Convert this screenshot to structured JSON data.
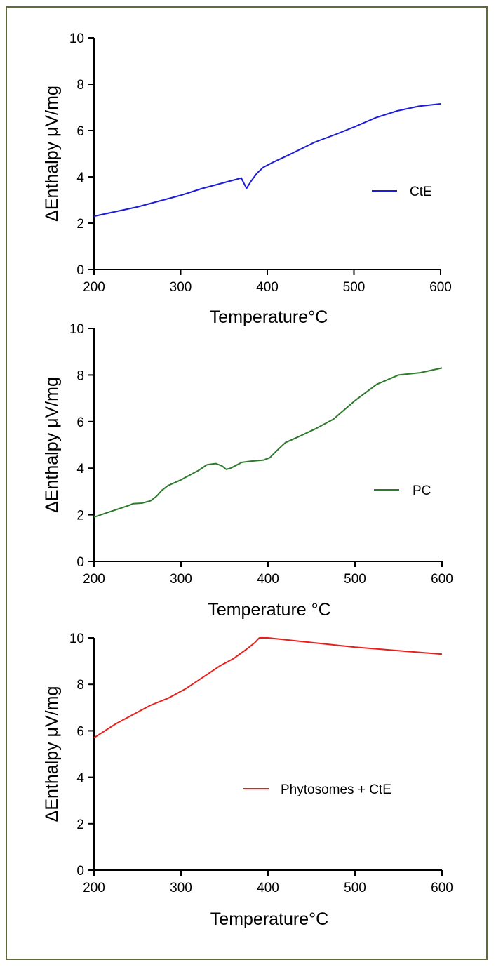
{
  "chart_data": [
    {
      "type": "line",
      "title": "",
      "xlabel": "Temperature°C",
      "ylabel": "ΔEnthalpy μV/mg",
      "xlim": [
        200,
        600
      ],
      "ylim": [
        0,
        10
      ],
      "xticks": [
        200,
        300,
        400,
        500,
        600
      ],
      "yticks": [
        0,
        2,
        4,
        6,
        8,
        10
      ],
      "grid": false,
      "legend": "right",
      "series": [
        {
          "name": "CtE",
          "color": "#1c1cdc",
          "x": [
            200,
            225,
            250,
            275,
            300,
            325,
            340,
            355,
            370,
            376,
            381,
            388,
            395,
            405,
            425,
            455,
            480,
            500,
            525,
            550,
            575,
            600
          ],
          "y": [
            2.3,
            2.5,
            2.7,
            2.95,
            3.2,
            3.5,
            3.65,
            3.8,
            3.95,
            3.5,
            3.8,
            4.15,
            4.4,
            4.6,
            4.95,
            5.5,
            5.85,
            6.15,
            6.55,
            6.85,
            7.05,
            7.15
          ]
        }
      ]
    },
    {
      "type": "line",
      "title": "",
      "xlabel": "Temperature °C",
      "ylabel": "ΔEnthalpy μV/mg",
      "xlim": [
        200,
        600
      ],
      "ylim": [
        0,
        10
      ],
      "xticks": [
        200,
        300,
        400,
        500,
        600
      ],
      "yticks": [
        0,
        2,
        4,
        6,
        8,
        10
      ],
      "grid": false,
      "legend": "right",
      "series": [
        {
          "name": "PC",
          "color": "#2d7a2d",
          "x": [
            200,
            220,
            240,
            245,
            255,
            265,
            272,
            278,
            285,
            300,
            320,
            330,
            340,
            347,
            352,
            357,
            370,
            380,
            395,
            402,
            410,
            420,
            435,
            455,
            475,
            500,
            525,
            550,
            575,
            600
          ],
          "y": [
            1.9,
            2.15,
            2.4,
            2.48,
            2.5,
            2.6,
            2.8,
            3.05,
            3.25,
            3.5,
            3.9,
            4.15,
            4.2,
            4.1,
            3.95,
            4.0,
            4.25,
            4.3,
            4.35,
            4.45,
            4.75,
            5.1,
            5.35,
            5.7,
            6.1,
            6.9,
            7.6,
            8.0,
            8.1,
            8.3
          ]
        }
      ]
    },
    {
      "type": "line",
      "title": "",
      "xlabel": "Temperature°C",
      "ylabel": "ΔEnthalpy μV/mg",
      "xlim": [
        200,
        600
      ],
      "ylim": [
        0,
        10
      ],
      "xticks": [
        200,
        300,
        400,
        500,
        600
      ],
      "yticks": [
        0,
        2,
        4,
        6,
        8,
        10
      ],
      "grid": false,
      "legend": "center-right",
      "series": [
        {
          "name": "Phytosomes + CtE",
          "color": "#e8201c",
          "x": [
            200,
            225,
            250,
            265,
            285,
            305,
            325,
            345,
            360,
            375,
            385,
            390,
            400,
            450,
            500,
            550,
            600
          ],
          "y": [
            5.7,
            6.3,
            6.8,
            7.1,
            7.4,
            7.8,
            8.3,
            8.8,
            9.1,
            9.5,
            9.8,
            10.0,
            10.0,
            9.8,
            9.6,
            9.45,
            9.3
          ]
        }
      ]
    }
  ]
}
